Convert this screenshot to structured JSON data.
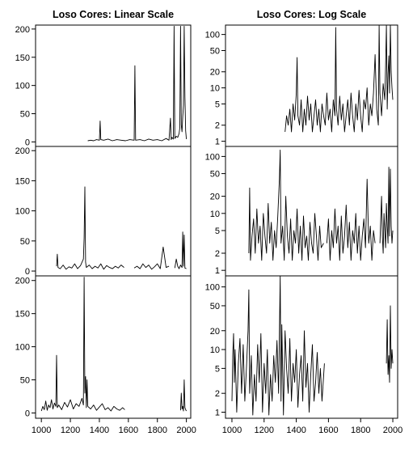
{
  "chart_data": [
    {
      "type": "line",
      "title": "Loso Cores: Linear Scale",
      "xlabel": "",
      "ylabel": "",
      "xlim": [
        960,
        2030
      ],
      "ylim": [
        -8,
        207
      ],
      "yscale": "linear",
      "yticks": [
        0,
        50,
        100,
        150,
        200
      ],
      "grid": false,
      "segments": [
        {
          "x": [
            1320,
            1340,
            1360,
            1380,
            1400,
            1405,
            1410,
            1430,
            1460,
            1490,
            1520,
            1550,
            1580,
            1610,
            1640,
            1645,
            1650,
            1680,
            1710,
            1740,
            1770,
            1800,
            1830,
            1860,
            1880,
            1890,
            1895,
            1900,
            1910,
            1915,
            1920,
            1930,
            1940,
            1950,
            1955,
            1960,
            1965,
            1970,
            1975,
            1980,
            1985,
            1990,
            1995,
            2000
          ],
          "y": [
            2,
            3,
            2,
            4,
            3,
            37,
            4,
            3,
            5,
            2,
            4,
            3,
            2,
            4,
            3,
            135,
            3,
            4,
            2,
            5,
            3,
            4,
            2,
            6,
            3,
            42,
            4,
            8,
            5,
            205,
            6,
            10,
            8,
            15,
            25,
            205,
            30,
            18,
            45,
            65,
            205,
            80,
            20,
            5
          ]
        }
      ]
    },
    {
      "type": "line",
      "title": "Loso Cores: Log Scale",
      "xlabel": "",
      "ylabel": "",
      "xlim": [
        960,
        2030
      ],
      "ylim": [
        0.8,
        150
      ],
      "yscale": "log",
      "yticks": [
        1,
        2,
        5,
        10,
        20,
        50,
        100
      ],
      "grid": false,
      "segments": [
        {
          "x": [
            1330,
            1340,
            1350,
            1360,
            1370,
            1380,
            1390,
            1400,
            1405,
            1410,
            1420,
            1430,
            1440,
            1450,
            1460,
            1470,
            1480,
            1490,
            1500,
            1510,
            1520,
            1530,
            1540,
            1550,
            1560,
            1570,
            1580,
            1590,
            1600,
            1610,
            1620,
            1630,
            1640,
            1645,
            1650,
            1660,
            1670,
            1680,
            1690,
            1700,
            1710,
            1720,
            1730,
            1740,
            1750,
            1760,
            1770,
            1780,
            1790,
            1800,
            1810,
            1820,
            1830,
            1840,
            1850,
            1860,
            1870,
            1880,
            1890,
            1900,
            1910,
            1915,
            1920,
            1930,
            1940,
            1950,
            1955,
            1960,
            1965,
            1970,
            1975,
            1980,
            1985,
            1990,
            1995,
            2000
          ],
          "y": [
            1.5,
            3,
            2,
            4,
            1.5,
            5,
            2.5,
            8,
            37,
            3,
            2,
            6,
            1.5,
            4,
            2,
            7,
            2.5,
            5,
            1.5,
            3,
            6,
            2,
            4,
            1.5,
            5,
            3,
            2,
            8,
            2.5,
            4,
            1.5,
            6,
            3,
            135,
            4,
            2,
            7,
            2.5,
            5,
            1.5,
            3,
            6,
            2,
            8,
            3,
            1.5,
            5,
            2.5,
            9,
            3,
            1.5,
            6,
            4,
            10,
            2,
            5,
            3,
            8,
            42,
            4,
            2,
            150,
            8,
            3,
            12,
            6,
            25,
            150,
            4,
            18,
            40,
            8,
            150,
            20,
            10,
            6
          ]
        }
      ]
    },
    {
      "type": "line",
      "title": "",
      "xlabel": "",
      "ylabel": "",
      "xlim": [
        960,
        2030
      ],
      "ylim": [
        -8,
        207
      ],
      "yscale": "linear",
      "yticks": [
        0,
        50,
        100,
        150,
        200
      ],
      "grid": false,
      "segments": [
        {
          "x": [
            1105,
            1110,
            1115,
            1130,
            1150,
            1170,
            1190,
            1210,
            1230,
            1250,
            1270,
            1290,
            1295,
            1300,
            1305,
            1310,
            1330,
            1350,
            1370,
            1390,
            1410,
            1430,
            1450,
            1470,
            1490,
            1510,
            1530,
            1550,
            1570
          ],
          "y": [
            8,
            28,
            6,
            4,
            10,
            3,
            7,
            5,
            12,
            4,
            9,
            20,
            55,
            140,
            15,
            6,
            10,
            4,
            8,
            5,
            12,
            3,
            9,
            6,
            4,
            8,
            5,
            10,
            6
          ]
        },
        {
          "x": [
            1640,
            1660,
            1680,
            1700,
            1720,
            1740,
            1760,
            1780,
            1800,
            1820,
            1840,
            1860,
            1880
          ],
          "y": [
            5,
            8,
            4,
            12,
            6,
            10,
            3,
            7,
            12,
            4,
            40,
            6,
            8
          ]
        },
        {
          "x": [
            1920,
            1930,
            1940,
            1950,
            1960,
            1970,
            1975,
            1980,
            1985,
            1990,
            2000
          ],
          "y": [
            5,
            20,
            8,
            4,
            10,
            6,
            65,
            8,
            60,
            5,
            4
          ]
        }
      ]
    },
    {
      "type": "line",
      "title": "",
      "xlabel": "",
      "ylabel": "",
      "xlim": [
        960,
        2030
      ],
      "ylim": [
        0.8,
        150
      ],
      "yscale": "log",
      "yticks": [
        1,
        2,
        5,
        10,
        20,
        50,
        100
      ],
      "grid": false,
      "segments": [
        {
          "x": [
            1105,
            1110,
            1115,
            1125,
            1135,
            1145,
            1155,
            1165,
            1175,
            1185,
            1195,
            1205,
            1215,
            1225,
            1235,
            1245,
            1255,
            1265,
            1275,
            1285,
            1295,
            1300,
            1305,
            1315,
            1325,
            1335,
            1345,
            1355,
            1365,
            1375,
            1385,
            1395,
            1405,
            1415,
            1425,
            1435,
            1445,
            1455,
            1465,
            1475,
            1485,
            1495,
            1505,
            1515,
            1525,
            1535,
            1545,
            1555,
            1570
          ],
          "y": [
            2,
            28,
            1.5,
            4,
            8,
            2,
            12,
            3,
            6,
            1.5,
            10,
            4,
            2,
            15,
            3,
            7,
            1.5,
            5,
            2.5,
            9,
            40,
            130,
            3,
            6,
            1.5,
            20,
            4,
            2,
            8,
            1.5,
            5,
            3,
            12,
            2,
            6,
            1.5,
            9,
            2.5,
            4,
            1.5,
            7,
            3,
            2,
            10,
            4,
            1.5,
            6,
            2.5,
            3
          ]
        },
        {
          "x": [
            1590,
            1600,
            1610,
            1620,
            1630,
            1640,
            1650,
            1660,
            1670,
            1680,
            1690,
            1700,
            1710,
            1720,
            1730,
            1740,
            1750,
            1760,
            1770,
            1780,
            1790,
            1800,
            1810,
            1820,
            1830,
            1840,
            1850,
            1860,
            1870,
            1880,
            1890
          ],
          "y": [
            3,
            8,
            1.5,
            5,
            2.5,
            12,
            3,
            6,
            1.5,
            9,
            2,
            4,
            14,
            2.5,
            7,
            1.5,
            5,
            3,
            10,
            2,
            6,
            1.5,
            4,
            8,
            2.5,
            40,
            3,
            6,
            1.5,
            5,
            3
          ]
        },
        {
          "x": [
            1920,
            1925,
            1930,
            1935,
            1940,
            1945,
            1950,
            1955,
            1960,
            1965,
            1970,
            1975,
            1980,
            1985,
            1990,
            1995,
            2000
          ],
          "y": [
            3,
            8,
            20,
            4,
            2,
            10,
            5,
            2.5,
            15,
            6,
            3,
            65,
            4,
            60,
            6,
            3,
            5
          ]
        }
      ]
    },
    {
      "type": "line",
      "title": "",
      "xlabel": "",
      "ylabel": "",
      "xlim": [
        960,
        2030
      ],
      "ylim": [
        -8,
        207
      ],
      "yscale": "linear",
      "yticks": [
        0,
        50,
        100,
        150,
        200
      ],
      "xticks": [
        1000,
        1200,
        1400,
        1600,
        1800,
        2000
      ],
      "grid": false,
      "segments": [
        {
          "x": [
            1000,
            1010,
            1020,
            1030,
            1040,
            1050,
            1060,
            1070,
            1080,
            1090,
            1100,
            1105,
            1110,
            1120,
            1140,
            1160,
            1180,
            1200,
            1220,
            1240,
            1260,
            1280,
            1290,
            1295,
            1300,
            1305,
            1310,
            1315,
            1320,
            1340,
            1360,
            1380,
            1400,
            1420,
            1440,
            1460,
            1480,
            1500,
            1520,
            1540,
            1560,
            1575
          ],
          "y": [
            3,
            10,
            5,
            18,
            4,
            12,
            8,
            20,
            6,
            15,
            10,
            87,
            8,
            12,
            5,
            16,
            9,
            20,
            6,
            14,
            10,
            22,
            12,
            205,
            30,
            55,
            8,
            50,
            10,
            6,
            12,
            4,
            9,
            14,
            5,
            8,
            3,
            10,
            6,
            4,
            8,
            5
          ]
        },
        {
          "x": [
            1960,
            1965,
            1970,
            1975,
            1980,
            1985,
            1990,
            1995,
            2000
          ],
          "y": [
            4,
            30,
            6,
            10,
            3,
            50,
            8,
            5,
            3
          ]
        }
      ]
    },
    {
      "type": "line",
      "title": "",
      "xlabel": "",
      "ylabel": "",
      "xlim": [
        960,
        2030
      ],
      "ylim": [
        0.8,
        150
      ],
      "yscale": "log",
      "yticks": [
        1,
        2,
        5,
        10,
        20,
        50,
        100
      ],
      "xticks": [
        1000,
        1200,
        1400,
        1600,
        1800,
        2000
      ],
      "grid": false,
      "segments": [
        {
          "x": [
            1000,
            1005,
            1010,
            1015,
            1020,
            1030,
            1040,
            1050,
            1060,
            1070,
            1080,
            1090,
            1100,
            1105,
            1110,
            1120,
            1130,
            1140,
            1150,
            1160,
            1170,
            1180,
            1190,
            1200,
            1210,
            1220,
            1230,
            1240,
            1250,
            1260,
            1270,
            1280,
            1290,
            1300,
            1305,
            1310,
            1320,
            1330,
            1340,
            1350,
            1360,
            1370,
            1380,
            1390,
            1400,
            1410,
            1420,
            1430,
            1440,
            1450,
            1460,
            1470,
            1480,
            1490,
            1500,
            1510,
            1520,
            1530,
            1540,
            1550,
            1560,
            1575
          ],
          "y": [
            1.5,
            8,
            18,
            3,
            10,
            1,
            6,
            15,
            2,
            12,
            1.5,
            5,
            20,
            90,
            2,
            8,
            0.9,
            4,
            1.5,
            12,
            3,
            18,
            1,
            6,
            2,
            10,
            0.9,
            4,
            1.5,
            8,
            3,
            14,
            2,
            150,
            1.5,
            25,
            0.9,
            20,
            5,
            2,
            15,
            1.5,
            6,
            3,
            10,
            1.2,
            4,
            8,
            1.5,
            20,
            2.5,
            6,
            1,
            4,
            12,
            1.5,
            3,
            9,
            2,
            5,
            1.5,
            6
          ]
        },
        {
          "x": [
            1960,
            1965,
            1970,
            1975,
            1980,
            1985,
            1990,
            1995,
            2000
          ],
          "y": [
            6,
            30,
            4,
            8,
            3,
            50,
            5,
            10,
            6
          ]
        }
      ]
    }
  ]
}
